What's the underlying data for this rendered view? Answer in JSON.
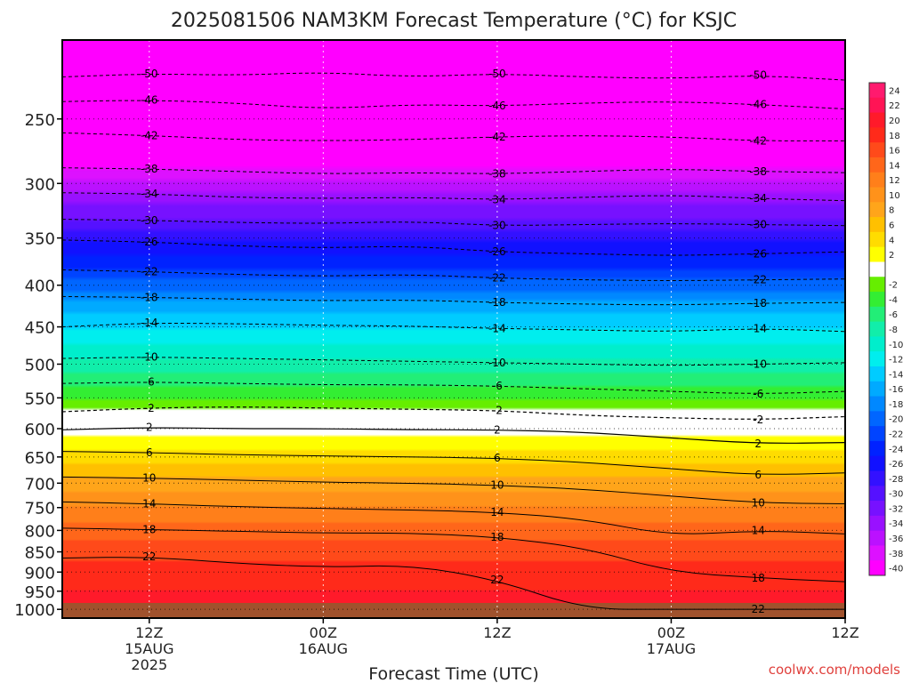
{
  "chart_data": {
    "type": "heatmap",
    "title": "2025081506 NAM3KM Forecast Temperature (°C) for KSJC",
    "xlabel": "Forecast Time (UTC)",
    "ylabel": "",
    "credit": "coolwx.com/models",
    "y_scale": "log",
    "ylim": [
      1025,
      200
    ],
    "y_ticks": [
      250,
      300,
      350,
      400,
      450,
      500,
      550,
      600,
      650,
      700,
      750,
      800,
      850,
      900,
      950,
      1000
    ],
    "xlim": [
      6,
      60
    ],
    "x_ticks": [
      {
        "x": 12,
        "labels": [
          "12Z",
          "15AUG",
          "2025"
        ]
      },
      {
        "x": 24,
        "labels": [
          "00Z",
          "16AUG"
        ]
      },
      {
        "x": 36,
        "labels": [
          "12Z"
        ]
      },
      {
        "x": 48,
        "labels": [
          "00Z",
          "17AUG"
        ]
      },
      {
        "x": 60,
        "labels": [
          "12Z"
        ]
      }
    ],
    "colorbar": [
      {
        "label": "24",
        "color": "#ff1a6e"
      },
      {
        "label": "22",
        "color": "#ff1455"
      },
      {
        "label": "20",
        "color": "#ff1a2a"
      },
      {
        "label": "18",
        "color": "#ff2a1a"
      },
      {
        "label": "16",
        "color": "#ff4a1a"
      },
      {
        "label": "14",
        "color": "#ff661a"
      },
      {
        "label": "12",
        "color": "#ff7f1a"
      },
      {
        "label": "10",
        "color": "#ff921a"
      },
      {
        "label": "8",
        "color": "#ffa51a"
      },
      {
        "label": "6",
        "color": "#ffc000"
      },
      {
        "label": "4",
        "color": "#ffdc00"
      },
      {
        "label": "2",
        "color": "#ffff00"
      },
      {
        "label": "",
        "color": "#ffffff"
      },
      {
        "label": "-2",
        "color": "#66ee00"
      },
      {
        "label": "-4",
        "color": "#33ee33"
      },
      {
        "label": "-6",
        "color": "#22ee77"
      },
      {
        "label": "-8",
        "color": "#11eeaa"
      },
      {
        "label": "-10",
        "color": "#00eecc"
      },
      {
        "label": "-12",
        "color": "#00eeee"
      },
      {
        "label": "-14",
        "color": "#00ccff"
      },
      {
        "label": "-16",
        "color": "#00aaff"
      },
      {
        "label": "-18",
        "color": "#0088ff"
      },
      {
        "label": "-20",
        "color": "#0066ff"
      },
      {
        "label": "-22",
        "color": "#0044ff"
      },
      {
        "label": "-24",
        "color": "#0022ff"
      },
      {
        "label": "-26",
        "color": "#1111ff"
      },
      {
        "label": "-28",
        "color": "#3311ff"
      },
      {
        "label": "-30",
        "color": "#5511ff"
      },
      {
        "label": "-32",
        "color": "#7711ff"
      },
      {
        "label": "-34",
        "color": "#9911ff"
      },
      {
        "label": "-36",
        "color": "#bb11ff"
      },
      {
        "label": "-38",
        "color": "#dd11ff"
      },
      {
        "label": "-40",
        "color": "#ff00ff"
      }
    ],
    "ground_color": "#a0522d",
    "temperature_profile": [
      {
        "p": 200,
        "t": -54
      },
      {
        "p": 225,
        "t": -50
      },
      {
        "p": 250,
        "t": -46
      },
      {
        "p": 275,
        "t": -42
      },
      {
        "p": 300,
        "t": -37
      },
      {
        "p": 325,
        "t": -33
      },
      {
        "p": 350,
        "t": -28
      },
      {
        "p": 375,
        "t": -25
      },
      {
        "p": 400,
        "t": -21
      },
      {
        "p": 425,
        "t": -17
      },
      {
        "p": 450,
        "t": -14
      },
      {
        "p": 500,
        "t": -9
      },
      {
        "p": 550,
        "t": -4
      },
      {
        "p": 575,
        "t": -1
      },
      {
        "p": 600,
        "t": 1
      },
      {
        "p": 625,
        "t": 3
      },
      {
        "p": 650,
        "t": 5
      },
      {
        "p": 700,
        "t": 9
      },
      {
        "p": 750,
        "t": 12
      },
      {
        "p": 800,
        "t": 15
      },
      {
        "p": 850,
        "t": 17
      },
      {
        "p": 900,
        "t": 19
      },
      {
        "p": 950,
        "t": 20
      },
      {
        "p": 1000,
        "t": 21
      }
    ],
    "contours": [
      {
        "t": -50,
        "points": [
          [
            6,
            222
          ],
          [
            12,
            220
          ],
          [
            18,
            221
          ],
          [
            24,
            219
          ],
          [
            30,
            222
          ],
          [
            36,
            220
          ],
          [
            42,
            222
          ],
          [
            48,
            223
          ],
          [
            54,
            221
          ],
          [
            60,
            224
          ]
        ]
      },
      {
        "t": -46,
        "points": [
          [
            6,
            238
          ],
          [
            12,
            237
          ],
          [
            18,
            239
          ],
          [
            24,
            243
          ],
          [
            30,
            240
          ],
          [
            36,
            241
          ],
          [
            42,
            239
          ],
          [
            48,
            238
          ],
          [
            54,
            240
          ],
          [
            60,
            243
          ]
        ]
      },
      {
        "t": -42,
        "points": [
          [
            6,
            260
          ],
          [
            12,
            262
          ],
          [
            18,
            265
          ],
          [
            24,
            266
          ],
          [
            30,
            265
          ],
          [
            36,
            263
          ],
          [
            42,
            262
          ],
          [
            48,
            263
          ],
          [
            54,
            266
          ],
          [
            60,
            266
          ]
        ]
      },
      {
        "t": -38,
        "points": [
          [
            6,
            287
          ],
          [
            12,
            288
          ],
          [
            18,
            290
          ],
          [
            24,
            292
          ],
          [
            30,
            291
          ],
          [
            36,
            292
          ],
          [
            42,
            290
          ],
          [
            48,
            288
          ],
          [
            54,
            290
          ],
          [
            60,
            291
          ]
        ]
      },
      {
        "t": -34,
        "points": [
          [
            6,
            308
          ],
          [
            12,
            309
          ],
          [
            18,
            312
          ],
          [
            24,
            313
          ],
          [
            30,
            312
          ],
          [
            36,
            314
          ],
          [
            42,
            312
          ],
          [
            48,
            310
          ],
          [
            54,
            313
          ],
          [
            60,
            315
          ]
        ]
      },
      {
        "t": -30,
        "points": [
          [
            6,
            332
          ],
          [
            12,
            333
          ],
          [
            18,
            335
          ],
          [
            24,
            336
          ],
          [
            30,
            334
          ],
          [
            36,
            338
          ],
          [
            42,
            337
          ],
          [
            48,
            336
          ],
          [
            54,
            337
          ],
          [
            60,
            338
          ]
        ]
      },
      {
        "t": -26,
        "points": [
          [
            6,
            352
          ],
          [
            12,
            354
          ],
          [
            18,
            358
          ],
          [
            24,
            360
          ],
          [
            30,
            358
          ],
          [
            36,
            364
          ],
          [
            42,
            366
          ],
          [
            48,
            368
          ],
          [
            54,
            366
          ],
          [
            60,
            364
          ]
        ]
      },
      {
        "t": -22,
        "points": [
          [
            6,
            383
          ],
          [
            12,
            385
          ],
          [
            18,
            388
          ],
          [
            24,
            390
          ],
          [
            30,
            388
          ],
          [
            36,
            392
          ],
          [
            42,
            394
          ],
          [
            48,
            395
          ],
          [
            54,
            394
          ],
          [
            60,
            393
          ]
        ]
      },
      {
        "t": -18,
        "points": [
          [
            6,
            413
          ],
          [
            12,
            414
          ],
          [
            18,
            416
          ],
          [
            24,
            418
          ],
          [
            30,
            417
          ],
          [
            36,
            420
          ],
          [
            42,
            422
          ],
          [
            48,
            423
          ],
          [
            54,
            421
          ],
          [
            60,
            420
          ]
        ]
      },
      {
        "t": -14,
        "points": [
          [
            6,
            450
          ],
          [
            12,
            445
          ],
          [
            18,
            446
          ],
          [
            24,
            448
          ],
          [
            30,
            449
          ],
          [
            36,
            452
          ],
          [
            42,
            454
          ],
          [
            48,
            456
          ],
          [
            54,
            452
          ],
          [
            60,
            456
          ]
        ]
      },
      {
        "t": -10,
        "points": [
          [
            6,
            492
          ],
          [
            12,
            490
          ],
          [
            18,
            492
          ],
          [
            24,
            494
          ],
          [
            30,
            496
          ],
          [
            36,
            498
          ],
          [
            42,
            500
          ],
          [
            48,
            502
          ],
          [
            54,
            500
          ],
          [
            60,
            498
          ]
        ]
      },
      {
        "t": -6,
        "points": [
          [
            6,
            528
          ],
          [
            12,
            526
          ],
          [
            18,
            528
          ],
          [
            24,
            530
          ],
          [
            30,
            530
          ],
          [
            36,
            532
          ],
          [
            42,
            536
          ],
          [
            48,
            540
          ],
          [
            54,
            544
          ],
          [
            60,
            540
          ]
        ]
      },
      {
        "t": -2,
        "points": [
          [
            6,
            572
          ],
          [
            12,
            566
          ],
          [
            18,
            564
          ],
          [
            24,
            566
          ],
          [
            30,
            568
          ],
          [
            36,
            570
          ],
          [
            42,
            578
          ],
          [
            48,
            582
          ],
          [
            54,
            585
          ],
          [
            60,
            580
          ]
        ]
      },
      {
        "t": 2,
        "points": [
          [
            6,
            602
          ],
          [
            12,
            598
          ],
          [
            18,
            600
          ],
          [
            24,
            600
          ],
          [
            30,
            602
          ],
          [
            36,
            602
          ],
          [
            42,
            606
          ],
          [
            48,
            616
          ],
          [
            54,
            626
          ],
          [
            60,
            624
          ]
        ]
      },
      {
        "t": 6,
        "points": [
          [
            6,
            640
          ],
          [
            12,
            642
          ],
          [
            18,
            646
          ],
          [
            24,
            648
          ],
          [
            30,
            650
          ],
          [
            36,
            652
          ],
          [
            42,
            660
          ],
          [
            48,
            672
          ],
          [
            54,
            684
          ],
          [
            60,
            680
          ]
        ]
      },
      {
        "t": 10,
        "points": [
          [
            6,
            688
          ],
          [
            12,
            690
          ],
          [
            18,
            694
          ],
          [
            24,
            698
          ],
          [
            30,
            700
          ],
          [
            36,
            704
          ],
          [
            42,
            712
          ],
          [
            48,
            726
          ],
          [
            54,
            740
          ],
          [
            60,
            742
          ]
        ]
      },
      {
        "t": 14,
        "points": [
          [
            6,
            738
          ],
          [
            12,
            742
          ],
          [
            18,
            748
          ],
          [
            24,
            752
          ],
          [
            30,
            755
          ],
          [
            36,
            760
          ],
          [
            42,
            775
          ],
          [
            48,
            812
          ],
          [
            54,
            800
          ],
          [
            60,
            808
          ]
        ]
      },
      {
        "t": 18,
        "points": [
          [
            6,
            795
          ],
          [
            12,
            798
          ],
          [
            18,
            802
          ],
          [
            24,
            806
          ],
          [
            30,
            806
          ],
          [
            36,
            815
          ],
          [
            42,
            840
          ],
          [
            48,
            900
          ],
          [
            54,
            915
          ],
          [
            60,
            925
          ]
        ]
      },
      {
        "t": 22,
        "points": [
          [
            6,
            865
          ],
          [
            12,
            862
          ],
          [
            18,
            878
          ],
          [
            24,
            888
          ],
          [
            30,
            882
          ],
          [
            36,
            920
          ],
          [
            42,
            1000
          ],
          [
            48,
            1000
          ],
          [
            54,
            1000
          ],
          [
            60,
            1000
          ]
        ]
      }
    ]
  }
}
